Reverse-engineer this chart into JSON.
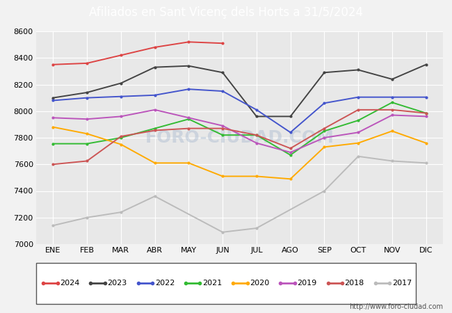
{
  "title": "Afiliados en Sant Vicenç dels Horts a 31/5/2024",
  "ylim": [
    7000,
    8600
  ],
  "yticks": [
    7000,
    7200,
    7400,
    7600,
    7800,
    8000,
    8200,
    8400,
    8600
  ],
  "months": [
    "ENE",
    "FEB",
    "MAR",
    "ABR",
    "MAY",
    "JUN",
    "JUL",
    "AGO",
    "SEP",
    "OCT",
    "NOV",
    "DIC"
  ],
  "series": {
    "2024": {
      "color": "#dd4444",
      "data": [
        8350,
        8360,
        8420,
        8480,
        8520,
        8510,
        null,
        null,
        null,
        null,
        null,
        null
      ]
    },
    "2023": {
      "color": "#444444",
      "data": [
        8100,
        8140,
        8210,
        8330,
        8340,
        8290,
        7960,
        7960,
        8290,
        8310,
        8240,
        8350
      ]
    },
    "2022": {
      "color": "#4455cc",
      "data": [
        8080,
        8100,
        8110,
        8120,
        8165,
        8150,
        8010,
        7840,
        8060,
        8105,
        8105,
        8105
      ]
    },
    "2021": {
      "color": "#33bb33",
      "data": [
        7755,
        7755,
        7800,
        7870,
        7940,
        7820,
        7820,
        7670,
        7850,
        7930,
        8065,
        7985
      ]
    },
    "2020": {
      "color": "#ffaa00",
      "data": [
        7880,
        7830,
        7750,
        7610,
        7610,
        7510,
        7510,
        7490,
        7730,
        7760,
        7850,
        7760
      ]
    },
    "2019": {
      "color": "#bb55bb",
      "data": [
        7950,
        7940,
        7960,
        8010,
        7950,
        7890,
        7760,
        7690,
        7800,
        7840,
        7970,
        7960
      ]
    },
    "2018": {
      "color": "#cc5555",
      "data": [
        7600,
        7625,
        7810,
        7855,
        7870,
        7870,
        7820,
        7720,
        7870,
        8010,
        8010,
        7985
      ]
    },
    "2017": {
      "color": "#bbbbbb",
      "data": [
        7140,
        7200,
        7240,
        7360,
        null,
        7090,
        7120,
        null,
        7400,
        7660,
        7625,
        7610
      ]
    }
  },
  "watermark": "FORO-CIUDAD.COM",
  "url": "http://www.foro-ciudad.com",
  "bg_color": "#f2f2f2",
  "plot_bg": "#e8e8e8",
  "grid_color": "#ffffff",
  "title_bg": "#6688bb",
  "title_color": "#ffffff"
}
